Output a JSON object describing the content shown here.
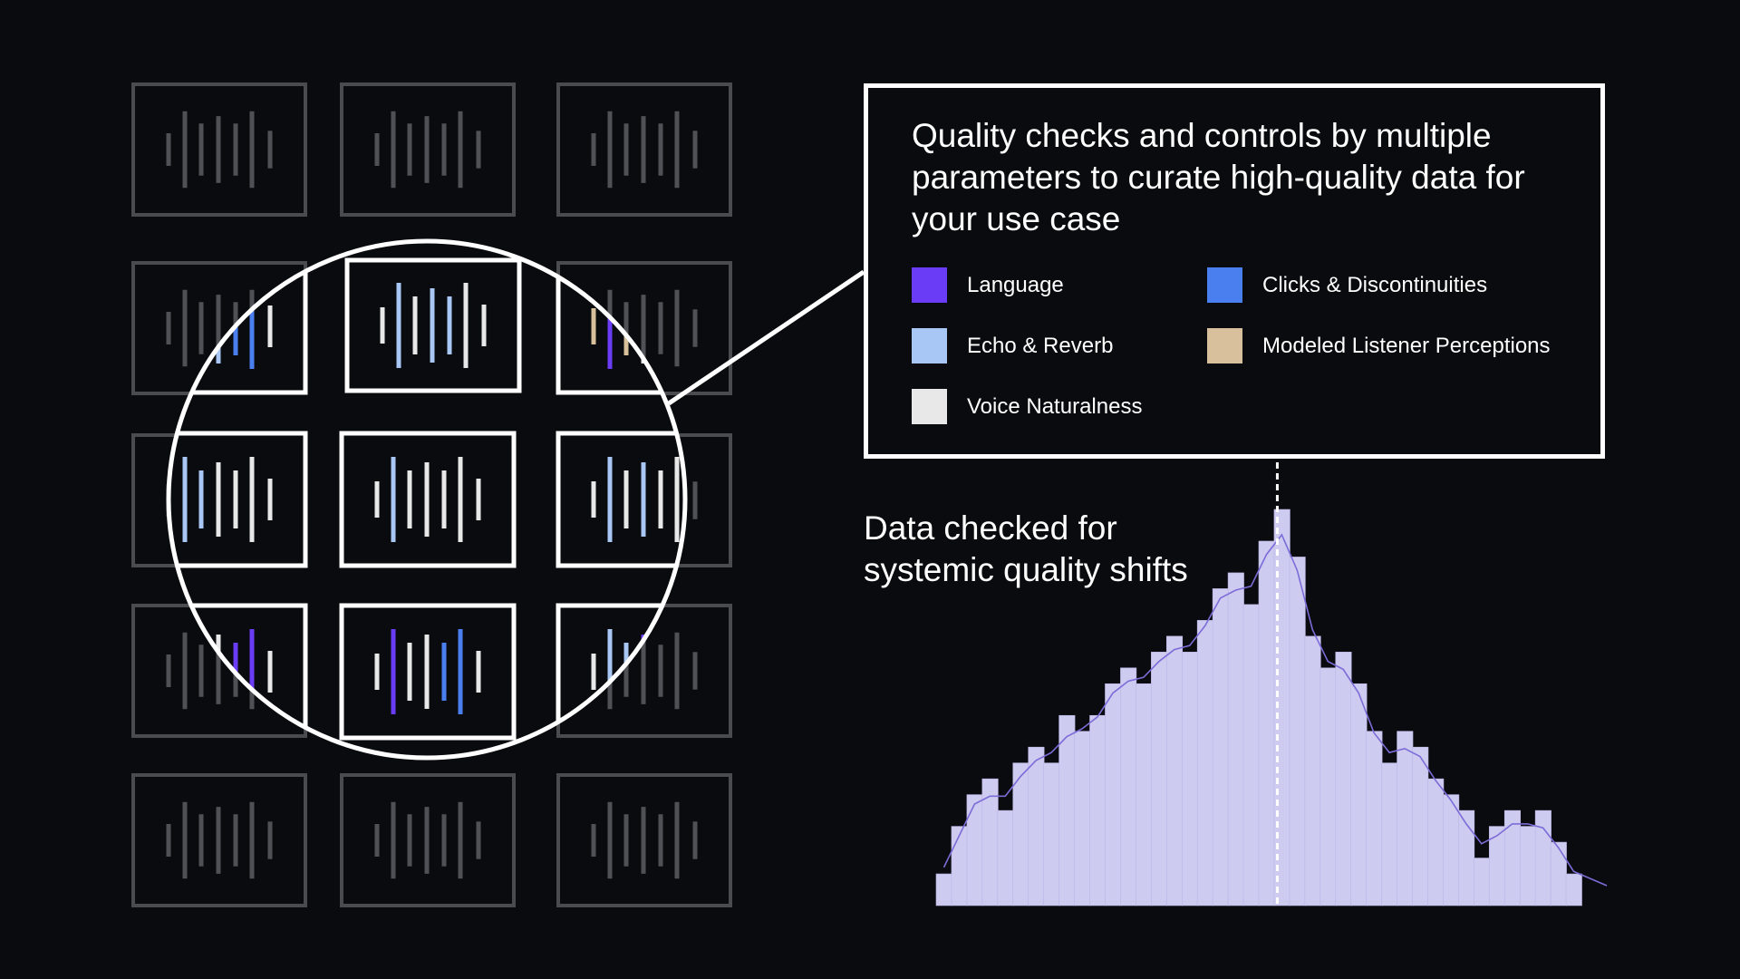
{
  "callout": {
    "title": "Quality checks and controls by multiple parameters to curate high-quality data for your use case",
    "legend": [
      {
        "label": "Language",
        "color": "#6a3cf5"
      },
      {
        "label": "Clicks & Discontinuities",
        "color": "#4a7ff0"
      },
      {
        "label": "Echo & Reverb",
        "color": "#a9c7f5"
      },
      {
        "label": "Modeled Listener Perceptions",
        "color": "#d7c09b"
      },
      {
        "label": "Voice Naturalness",
        "color": "#e8e8e8"
      }
    ]
  },
  "caption": "Data checked for systemic quality shifts",
  "colors": {
    "background": "#0a0b0e",
    "dim_card_border": "#4a4b4e",
    "dim_bar": "#505156",
    "highlight_border": "#ffffff",
    "histogram_fill": "#cdcbf0",
    "density_line": "#7b6cd8"
  },
  "icons": [
    "audio-waveform-icon",
    "magnifier-lens-icon"
  ],
  "chart_data": {
    "type": "bar",
    "values": [
      2,
      5,
      7,
      8,
      6,
      9,
      10,
      9,
      12,
      11,
      12,
      14,
      15,
      14,
      16,
      17,
      16,
      18,
      20,
      21,
      19,
      23,
      25,
      22,
      17,
      15,
      16,
      14,
      11,
      9,
      11,
      10,
      8,
      7,
      6,
      3,
      5,
      6,
      5,
      6,
      4,
      2
    ],
    "mean_marker": true,
    "density_curve": true
  }
}
